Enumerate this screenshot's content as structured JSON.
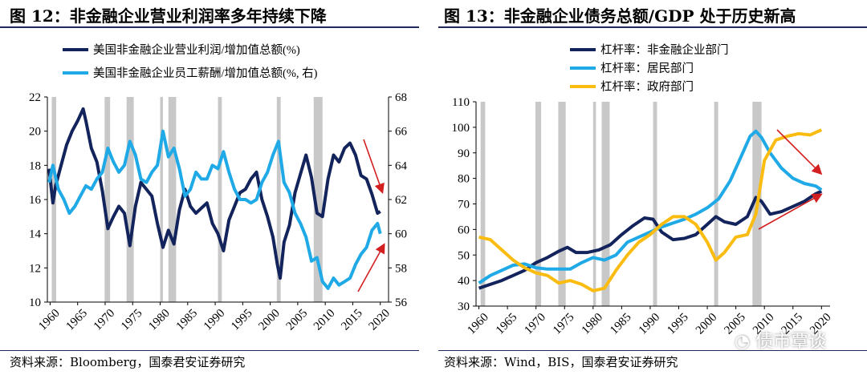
{
  "chart_data": [
    {
      "type": "line",
      "title": "图 12：非金融企业营业利润率多年持续下降",
      "source": "资料来源：Bloomberg，国泰君安证券研究",
      "x_ticks": [
        1960,
        1965,
        1970,
        1975,
        1980,
        1985,
        1990,
        1995,
        2000,
        2005,
        2010,
        2015,
        2020
      ],
      "xlim": [
        1959.5,
        2021.5
      ],
      "ylim_left": [
        10,
        22
      ],
      "y_ticks_left": [
        10,
        12,
        14,
        16,
        18,
        20,
        22
      ],
      "ylim_right": [
        56,
        68
      ],
      "y_ticks_right": [
        56,
        58,
        60,
        62,
        64,
        66,
        68
      ],
      "recession_bands": [
        [
          1960.3,
          1961.1
        ],
        [
          1969.9,
          1970.9
        ],
        [
          1973.9,
          1975.2
        ],
        [
          1980.0,
          1980.5
        ],
        [
          1981.5,
          1982.9
        ],
        [
          1990.5,
          1991.2
        ],
        [
          2001.2,
          2001.9
        ],
        [
          2007.9,
          2009.5
        ]
      ],
      "series": [
        {
          "name": "美国非金融企业营业利润/增加值总额(%)",
          "axis": "left",
          "color": "#13235b",
          "x": [
            1959.8,
            1960.5,
            1961.0,
            1962.0,
            1963.0,
            1964.0,
            1965.0,
            1966.0,
            1966.5,
            1967.5,
            1968.5,
            1969.5,
            1970.5,
            1971.5,
            1972.5,
            1973.5,
            1974.5,
            1975.5,
            1976.5,
            1977.5,
            1978.5,
            1979.5,
            1980.5,
            1981.5,
            1982.5,
            1983.5,
            1984.5,
            1985.5,
            1986.5,
            1987.5,
            1988.5,
            1989.5,
            1990.5,
            1991.5,
            1992.5,
            1993.5,
            1994.5,
            1995.5,
            1996.5,
            1997.5,
            1998.5,
            1999.5,
            2000.5,
            2001.3,
            2001.8,
            2002.5,
            2003.5,
            2004.5,
            2005.5,
            2006.5,
            2007.5,
            2008.5,
            2009.5,
            2010.5,
            2011.5,
            2012.5,
            2013.5,
            2014.5,
            2015.5,
            2016.5,
            2017.5,
            2018.5,
            2019.5,
            2020.0
          ],
          "values": [
            17.8,
            15.8,
            16.8,
            18.0,
            19.2,
            20.0,
            20.6,
            21.3,
            20.6,
            19.0,
            18.2,
            16.5,
            14.3,
            15.0,
            15.6,
            15.2,
            13.3,
            15.6,
            17.0,
            16.6,
            16.2,
            14.6,
            13.2,
            14.2,
            13.4,
            15.4,
            16.6,
            15.6,
            15.2,
            15.5,
            15.8,
            14.6,
            14.0,
            13.0,
            14.8,
            15.6,
            16.4,
            16.6,
            17.2,
            17.6,
            16.0,
            15.0,
            13.8,
            12.2,
            11.4,
            13.5,
            14.5,
            16.4,
            17.5,
            18.6,
            17.3,
            15.2,
            15.0,
            17.2,
            18.6,
            18.2,
            19.0,
            19.3,
            18.6,
            17.4,
            17.2,
            16.3,
            15.2,
            15.3
          ]
        },
        {
          "name": "美国非金融企业员工薪酬/增加值总额(%，右)",
          "axis": "right",
          "color": "#1fa9e6",
          "x": [
            1959.8,
            1960.5,
            1961.5,
            1962.5,
            1963.5,
            1964.5,
            1965.5,
            1966.5,
            1967.5,
            1968.5,
            1969.5,
            1970.5,
            1971.5,
            1972.5,
            1973.5,
            1974.5,
            1975.5,
            1976.5,
            1977.5,
            1978.5,
            1979.5,
            1980.5,
            1981.5,
            1982.5,
            1983.5,
            1984.5,
            1985.5,
            1986.5,
            1987.5,
            1988.5,
            1989.5,
            1990.5,
            1991.5,
            1992.5,
            1993.5,
            1994.5,
            1995.5,
            1996.5,
            1997.5,
            1998.5,
            1999.5,
            2000.5,
            2001.5,
            2002.5,
            2003.5,
            2004.5,
            2005.5,
            2006.5,
            2007.5,
            2008.5,
            2009.5,
            2010.5,
            2011.5,
            2012.5,
            2013.5,
            2014.5,
            2015.5,
            2016.5,
            2017.5,
            2018.5,
            2019.5,
            2020.0
          ],
          "values": [
            63.0,
            64.0,
            62.6,
            62.0,
            61.2,
            61.6,
            62.2,
            62.8,
            62.6,
            63.2,
            63.6,
            65.0,
            64.2,
            63.6,
            64.0,
            65.4,
            64.6,
            63.2,
            63.0,
            63.6,
            64.0,
            66.0,
            64.5,
            65.0,
            63.8,
            62.2,
            62.6,
            63.6,
            63.2,
            63.2,
            64.0,
            63.8,
            64.8,
            63.6,
            62.6,
            62.0,
            62.0,
            61.8,
            62.0,
            63.0,
            63.6,
            64.6,
            65.4,
            63.0,
            62.4,
            61.2,
            60.6,
            59.8,
            58.4,
            58.6,
            57.2,
            56.8,
            57.4,
            57.0,
            57.2,
            57.4,
            58.2,
            58.8,
            59.2,
            60.2,
            60.6,
            60.0
          ],
          "legend_label": "美国非金融企业员工薪酬/增加值总额(%, 右)"
        }
      ],
      "annotations": [
        "red arrow pointing down near 2017-2019 over profit line",
        "red arrow pointing up near 2015-2019 under compensation line"
      ],
      "legend_position": "top-left"
    },
    {
      "type": "line",
      "title": "图 13：非金融企业债务总额/GDP 处于历史新高",
      "source": "资料来源：Wind，BIS，国泰君安证券研究",
      "x_ticks": [
        1960,
        1965,
        1970,
        1975,
        1980,
        1985,
        1990,
        1995,
        2000,
        2005,
        2010,
        2015,
        2020
      ],
      "xlim": [
        1959.5,
        2021.5
      ],
      "ylim": [
        30,
        110
      ],
      "y_ticks": [
        30,
        40,
        50,
        60,
        70,
        80,
        90,
        100,
        110
      ],
      "recession_bands": [
        [
          1960.3,
          1961.1
        ],
        [
          1969.9,
          1970.9
        ],
        [
          1973.9,
          1975.2
        ],
        [
          1980.0,
          1980.5
        ],
        [
          1981.5,
          1982.9
        ],
        [
          1990.5,
          1991.2
        ],
        [
          2001.2,
          2001.9
        ],
        [
          2007.9,
          2009.5
        ]
      ],
      "series": [
        {
          "name": "杠杆率：非金融企业部门",
          "color": "#13235b",
          "x": [
            1960,
            1962,
            1964,
            1966,
            1968,
            1970,
            1972,
            1974,
            1975.5,
            1977,
            1979,
            1981,
            1983,
            1985,
            1987,
            1989,
            1990.5,
            1992,
            1994,
            1996,
            1998,
            2000,
            2001.5,
            2003,
            2005,
            2007,
            2008.5,
            2009.5,
            2011,
            2013,
            2015,
            2017,
            2019,
            2020
          ],
          "values": [
            37,
            38.5,
            40,
            42,
            44,
            47,
            49,
            51.5,
            53,
            51,
            51,
            52,
            54,
            58,
            61.5,
            64.5,
            64,
            59,
            56,
            56.5,
            58,
            62,
            65,
            63,
            62,
            65,
            72.5,
            71,
            66,
            67,
            69,
            71,
            74,
            75
          ]
        },
        {
          "name": "杠杆率：居民部门",
          "color": "#1fa9e6",
          "x": [
            1960,
            1962,
            1964,
            1966,
            1968,
            1970,
            1972,
            1974,
            1976,
            1978,
            1980,
            1982,
            1984,
            1986,
            1988,
            1990,
            1992,
            1994,
            1996,
            1998,
            2000,
            2002,
            2004,
            2006,
            2007.5,
            2008.5,
            2009.5,
            2011,
            2013,
            2015,
            2017,
            2019,
            2020
          ],
          "values": [
            39,
            42,
            44,
            46,
            46.5,
            45,
            44.5,
            44.5,
            44.5,
            47,
            49,
            48,
            50,
            55,
            57,
            59,
            61,
            62.5,
            64,
            66,
            68.5,
            72,
            79,
            89,
            96.5,
            98.5,
            96,
            90,
            84,
            80,
            78,
            77,
            75.5
          ]
        },
        {
          "name": "杠杆率：政府部门",
          "color": "#fbbc12",
          "x": [
            1960,
            1962,
            1964,
            1966,
            1968,
            1970,
            1972,
            1974,
            1976,
            1978,
            1980,
            1982,
            1984,
            1986,
            1988,
            1990,
            1992,
            1994,
            1996,
            1998,
            2000,
            2001.5,
            2003,
            2005,
            2007,
            2008.5,
            2010,
            2012,
            2014,
            2016,
            2018,
            2020
          ],
          "values": [
            57,
            56,
            52,
            48,
            45,
            43,
            42,
            39,
            40,
            38.5,
            36,
            37,
            44,
            50,
            55,
            58,
            62,
            65,
            65,
            62,
            55,
            48,
            51,
            57,
            58,
            66,
            87,
            95,
            96.5,
            97.5,
            97,
            99
          ]
        }
      ],
      "annotations": [
        "red arrow pointing down-right from household peak toward 2020",
        "red arrow pointing up-right below toward 2020"
      ],
      "legend_position": "top-left"
    }
  ],
  "watermark": {
    "icon": "wechat-icon",
    "text": "债市覃谈"
  }
}
